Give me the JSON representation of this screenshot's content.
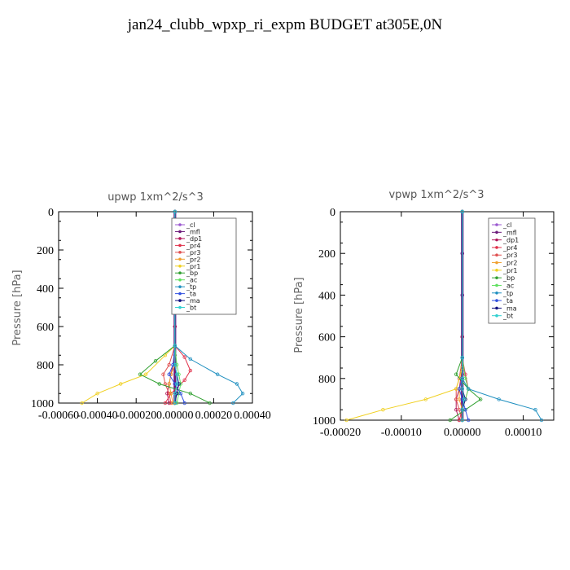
{
  "title": "jan24_clubb_wpxp_ri_expm  BUDGET at305E,0N",
  "legend_entries": [
    "_cl",
    "_mfl",
    "_dp1",
    "_pr4",
    "_pr3",
    "_pr2",
    "_pr1",
    "_bp",
    "_ac",
    "_tp",
    "_ta",
    "_ma",
    "_bt"
  ],
  "colors": {
    "_cl": "#9b59d0",
    "_mfl": "#6b1a7a",
    "_dp1": "#b0195a",
    "_pr4": "#e0304a",
    "_pr3": "#e05050",
    "_pr2": "#f0a030",
    "_pr1": "#f0d020",
    "_bp": "#30a030",
    "_ac": "#60e060",
    "_tp": "#2090c0",
    "_ta": "#3050e0",
    "_ma": "#101080",
    "_bt": "#30d0d0"
  },
  "chart_data": [
    {
      "type": "line",
      "title": "upwp   1xm^2/s^3",
      "ylabel": "Pressure [hPa]",
      "xlim": [
        -0.0006,
        0.0004
      ],
      "ylim": [
        1000,
        0
      ],
      "xticks": [
        "-0.00060",
        "-0.00040",
        "-0.00020",
        "0.00000",
        "0.00020",
        "0.00040"
      ],
      "yticks": [
        "0",
        "200",
        "400",
        "600",
        "800",
        "1000"
      ],
      "series": [
        {
          "name": "_cl",
          "x": [
            0,
            0,
            0,
            0,
            0,
            0,
            0
          ],
          "y": [
            0,
            200,
            400,
            600,
            800,
            900,
            1000
          ]
        },
        {
          "name": "_mfl",
          "x": [
            0,
            0,
            0,
            0,
            0,
            0,
            0
          ],
          "y": [
            0,
            200,
            400,
            600,
            800,
            900,
            1000
          ]
        },
        {
          "name": "_dp1",
          "x": [
            0,
            0,
            0,
            -2e-05,
            -3e-05,
            -4e-05,
            -3e-05
          ],
          "y": [
            0,
            600,
            750,
            850,
            900,
            950,
            1000
          ]
        },
        {
          "name": "_pr4",
          "x": [
            0,
            0,
            5e-05,
            8e-05,
            5e-05,
            -2e-05,
            -5e-05
          ],
          "y": [
            0,
            700,
            760,
            830,
            880,
            950,
            1000
          ]
        },
        {
          "name": "_pr3",
          "x": [
            0,
            0,
            -3e-05,
            -6e-05,
            -5e-05,
            -3e-05,
            -2e-05
          ],
          "y": [
            0,
            700,
            800,
            850,
            900,
            950,
            1000
          ]
        },
        {
          "name": "_pr2",
          "x": [
            0,
            0,
            0,
            -2e-05,
            -3e-05,
            -2e-05,
            -1e-05
          ],
          "y": [
            0,
            700,
            800,
            850,
            900,
            950,
            1000
          ]
        },
        {
          "name": "_pr1",
          "x": [
            0,
            0,
            -5e-05,
            -0.00015,
            -0.00028,
            -0.0004,
            -0.00048
          ],
          "y": [
            0,
            700,
            750,
            850,
            900,
            950,
            1000
          ]
        },
        {
          "name": "_bp",
          "x": [
            0,
            0,
            -0.0001,
            -0.00018,
            -8e-05,
            8e-05,
            0.00018
          ],
          "y": [
            0,
            700,
            780,
            850,
            900,
            950,
            1000
          ]
        },
        {
          "name": "_ac",
          "x": [
            0,
            0,
            1e-05,
            2e-05,
            3e-05,
            2e-05,
            1e-05
          ],
          "y": [
            0,
            700,
            800,
            850,
            900,
            950,
            1000
          ]
        },
        {
          "name": "_tp",
          "x": [
            0,
            0,
            8e-05,
            0.00022,
            0.00032,
            0.00035,
            0.0003
          ],
          "y": [
            0,
            700,
            770,
            850,
            900,
            950,
            1000
          ]
        },
        {
          "name": "_ta",
          "x": [
            0,
            0,
            -1e-05,
            -3e-05,
            0,
            3e-05,
            5e-05
          ],
          "y": [
            0,
            700,
            800,
            850,
            900,
            950,
            1000
          ]
        },
        {
          "name": "_ma",
          "x": [
            0,
            0,
            0,
            1e-05,
            2e-05,
            1e-05,
            0
          ],
          "y": [
            0,
            700,
            800,
            850,
            900,
            950,
            1000
          ]
        },
        {
          "name": "_bt",
          "x": [
            0,
            0,
            0,
            1e-05,
            1e-05,
            0,
            0
          ],
          "y": [
            0,
            700,
            800,
            850,
            900,
            950,
            1000
          ]
        }
      ]
    },
    {
      "type": "line",
      "title": "vpwp   1xm^2/s^3",
      "ylabel": "Pressure [hPa]",
      "xlim": [
        -0.0002,
        0.00015
      ],
      "ylim": [
        1000,
        0
      ],
      "xticks": [
        "-0.00020",
        "-0.00010",
        "0.00000",
        "0.00010"
      ],
      "yticks": [
        "0",
        "200",
        "400",
        "600",
        "800",
        "1000"
      ],
      "series": [
        {
          "name": "_cl",
          "x": [
            0,
            0,
            0,
            0,
            0,
            0,
            0
          ],
          "y": [
            0,
            200,
            400,
            600,
            800,
            900,
            1000
          ]
        },
        {
          "name": "_mfl",
          "x": [
            0,
            0,
            0,
            0,
            0,
            0,
            0
          ],
          "y": [
            0,
            200,
            400,
            600,
            800,
            900,
            1000
          ]
        },
        {
          "name": "_dp1",
          "x": [
            0,
            0,
            0,
            -5e-06,
            -1e-05,
            -1e-05,
            -5e-06
          ],
          "y": [
            0,
            600,
            750,
            850,
            900,
            950,
            1000
          ]
        },
        {
          "name": "_pr4",
          "x": [
            0,
            0,
            5e-06,
            1e-05,
            5e-06,
            0,
            -5e-06
          ],
          "y": [
            0,
            700,
            780,
            850,
            900,
            950,
            1000
          ]
        },
        {
          "name": "_pr3",
          "x": [
            0,
            0,
            -5e-06,
            -1e-05,
            -1e-05,
            -5e-06,
            0
          ],
          "y": [
            0,
            700,
            800,
            850,
            900,
            950,
            1000
          ]
        },
        {
          "name": "_pr2",
          "x": [
            0,
            0,
            0,
            -5e-06,
            -5e-06,
            0,
            0
          ],
          "y": [
            0,
            700,
            800,
            850,
            900,
            950,
            1000
          ]
        },
        {
          "name": "_pr1",
          "x": [
            0,
            0,
            0,
            -1e-05,
            -6e-05,
            -0.00013,
            -0.00019
          ],
          "y": [
            0,
            700,
            750,
            850,
            900,
            950,
            1000
          ]
        },
        {
          "name": "_bp",
          "x": [
            0,
            0,
            -1e-05,
            1e-05,
            3e-05,
            5e-06,
            -2e-05
          ],
          "y": [
            0,
            700,
            780,
            850,
            900,
            950,
            1000
          ]
        },
        {
          "name": "_ac",
          "x": [
            0,
            0,
            5e-06,
            1e-05,
            5e-06,
            0,
            0
          ],
          "y": [
            0,
            700,
            800,
            850,
            900,
            950,
            1000
          ]
        },
        {
          "name": "_tp",
          "x": [
            0,
            0,
            0,
            1e-05,
            6e-05,
            0.00012,
            0.00013
          ],
          "y": [
            0,
            700,
            800,
            850,
            900,
            950,
            1000
          ]
        },
        {
          "name": "_ta",
          "x": [
            0,
            0,
            0,
            -5e-06,
            0,
            5e-06,
            1e-05
          ],
          "y": [
            0,
            700,
            800,
            850,
            900,
            950,
            1000
          ]
        },
        {
          "name": "_ma",
          "x": [
            0,
            0,
            0,
            0,
            5e-06,
            0,
            0
          ],
          "y": [
            0,
            700,
            800,
            850,
            900,
            950,
            1000
          ]
        },
        {
          "name": "_bt",
          "x": [
            0,
            0,
            0,
            0,
            3e-06,
            0,
            0
          ],
          "y": [
            0,
            700,
            800,
            850,
            900,
            950,
            1000
          ]
        }
      ]
    }
  ]
}
